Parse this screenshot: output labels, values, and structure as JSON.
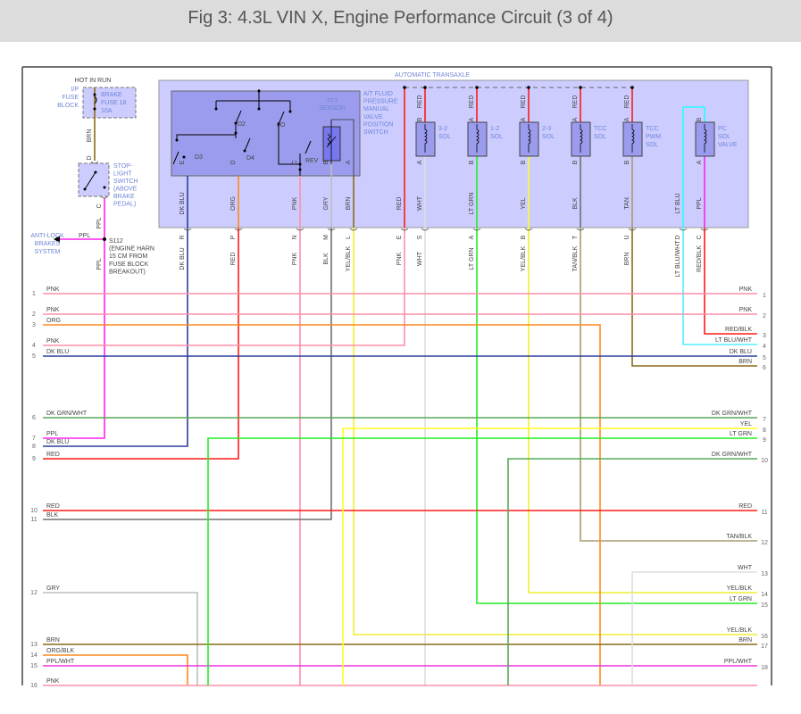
{
  "title": "Fig 3: 4.3L VIN X, Engine Performance Circuit (3 of 4)",
  "wire_colors": {
    "DK BLU": "#2b3ea0",
    "ORG": "#ff8a1e",
    "RED": "#ff1a1a",
    "PNK": "#ff8fa8",
    "GRY": "#bdbdbd",
    "BLK": "#707070",
    "BRN": "#8a6a1a",
    "YEL/BLK": "#eeee30",
    "WHT": "#dddddd",
    "LT GRN": "#22ee22",
    "YEL": "#ffff22",
    "TAN/BLK": "#a89a70",
    "TAN": "#a89a70",
    "LT BLU": "#22ffff",
    "LT BLU/WHT": "#55eeff",
    "PPL": "#ff22ee",
    "RED/BLK": "#ff1a1a",
    "DK GRN/WHT": "#55aa55",
    "ORG/BLK": "#ff8a1e",
    "PPL/WHT": "#ee33dd"
  },
  "fuse": {
    "hot_in_run": "HOT IN RUN",
    "block_lines": [
      "I/P",
      "FUSE",
      "BLOCK"
    ],
    "fuse_lines": [
      "BRAKE",
      "FUSE 18",
      "10A"
    ],
    "wire_label": "BRN",
    "pin": "D"
  },
  "stoplight_switch": {
    "lines": [
      "STOP-",
      "LIGHT",
      "SWITCH",
      "(ABOVE",
      "BRAKE",
      "PEDAL)"
    ],
    "pin": "C",
    "wire_label": "PPL"
  },
  "splice": {
    "lines": [
      "S112",
      "(ENGINE HARN",
      "15 CM FROM",
      "FUSE BLOCK",
      "BREAKOUT)"
    ],
    "branch_label": "PPL",
    "lower_label": "PPL"
  },
  "antilock": {
    "lines": [
      "ANTI-LOCK",
      "BRAKES",
      "SYSTEM"
    ]
  },
  "transaxle": {
    "label": "AUTOMATIC TRANSAXLE",
    "switch_lines": [
      "A/T FLUID",
      "PRESSURE",
      "MANUAL",
      "VALVE",
      "POSITION",
      "SWITCH"
    ],
    "switch_positions": [
      "D2",
      "D3",
      "D4",
      "LO",
      "REV"
    ],
    "sensor_lines": [
      "TFT",
      "SENSOR"
    ],
    "solenoids": [
      {
        "lines": [
          "3-2",
          "SOL"
        ],
        "top_pin": "B",
        "top_wire": "RED"
      },
      {
        "lines": [
          "1-2",
          "SOL"
        ],
        "top_pin": "A",
        "top_wire": "RED"
      },
      {
        "lines": [
          "2-3",
          "SOL"
        ],
        "top_pin": "A",
        "top_wire": "RED"
      },
      {
        "lines": [
          "TCC",
          "SOL"
        ],
        "top_pin": "A",
        "top_wire": "RED"
      },
      {
        "lines": [
          "TCC",
          "PWM",
          "SOL"
        ],
        "top_pin": "A",
        "top_wire": "RED"
      },
      {
        "lines": [
          "PC",
          "SOL",
          "VALVE"
        ],
        "top_pin": "B",
        "top_wire": ""
      }
    ]
  },
  "connector_wires": [
    {
      "upper_pin": "E",
      "upper_label": "DK BLU",
      "lower_pin": "R",
      "lower_label": "DK BLU"
    },
    {
      "upper_pin": "D",
      "upper_label": "ORG",
      "lower_pin": "P",
      "lower_label": "RED"
    },
    {
      "upper_pin": "C",
      "upper_label": "PNK",
      "lower_pin": "N",
      "lower_label": "PNK"
    },
    {
      "upper_pin": "B",
      "upper_label": "GRY",
      "lower_pin": "M",
      "lower_label": "BLK"
    },
    {
      "upper_pin": "A",
      "upper_label": "BRN",
      "lower_pin": "L",
      "lower_label": "YEL/BLK"
    },
    {
      "upper_pin": "",
      "upper_label": "RED",
      "lower_pin": "E",
      "lower_label": "PNK"
    },
    {
      "upper_pin": "A",
      "upper_label": "WHT",
      "lower_pin": "S",
      "lower_label": "WHT"
    },
    {
      "upper_pin": "B",
      "upper_label": "LT GRN",
      "lower_pin": "A",
      "lower_label": "LT GRN"
    },
    {
      "upper_pin": "B",
      "upper_label": "YEL",
      "lower_pin": "B",
      "lower_label": "YEL/BLK"
    },
    {
      "upper_pin": "B",
      "upper_label": "BLK",
      "lower_pin": "T",
      "lower_label": "TAN/BLK"
    },
    {
      "upper_pin": "B",
      "upper_label": "TAN",
      "lower_pin": "U",
      "lower_label": "BRN"
    },
    {
      "upper_pin": "",
      "upper_label": "LT BLU",
      "lower_pin": "D",
      "lower_label": "LT BLU/WHT"
    },
    {
      "upper_pin": "A",
      "upper_label": "PPL",
      "lower_pin": "C",
      "lower_label": "RED/BLK"
    }
  ],
  "left_wires": [
    {
      "num": "1",
      "label": "PNK"
    },
    {
      "num": "2",
      "label": "PNK"
    },
    {
      "num": "3",
      "label": "ORG"
    },
    {
      "num": "4",
      "label": "PNK"
    },
    {
      "num": "5",
      "label": "DK BLU"
    },
    {
      "num": "6",
      "label": "DK GRN/WHT"
    },
    {
      "num": "7",
      "label": "PPL"
    },
    {
      "num": "8",
      "label": "DK BLU"
    },
    {
      "num": "9",
      "label": "RED"
    },
    {
      "num": "10",
      "label": "RED"
    },
    {
      "num": "11",
      "label": "BLK"
    },
    {
      "num": "12",
      "label": "GRY"
    },
    {
      "num": "13",
      "label": "BRN"
    },
    {
      "num": "14",
      "label": "ORG/BLK"
    },
    {
      "num": "15",
      "label": "PPL/WHT"
    },
    {
      "num": "16",
      "label": "PNK"
    }
  ],
  "right_wires": [
    {
      "num": "1",
      "label": "PNK"
    },
    {
      "num": "2",
      "label": "PNK"
    },
    {
      "num": "3",
      "label": "RED/BLK"
    },
    {
      "num": "4",
      "label": "LT BLU/WHT"
    },
    {
      "num": "5",
      "label": "DK BLU"
    },
    {
      "num": "6",
      "label": "BRN"
    },
    {
      "num": "7",
      "label": "DK GRN/WHT"
    },
    {
      "num": "8",
      "label": "YEL"
    },
    {
      "num": "9",
      "label": "LT GRN"
    },
    {
      "num": "10",
      "label": "DK GRN/WHT"
    },
    {
      "num": "11",
      "label": "RED"
    },
    {
      "num": "12",
      "label": "TAN/BLK"
    },
    {
      "num": "13",
      "label": "WHT"
    },
    {
      "num": "14",
      "label": "YEL/BLK"
    },
    {
      "num": "15",
      "label": "LT GRN"
    },
    {
      "num": "16",
      "label": "YEL/BLK"
    },
    {
      "num": "17",
      "label": "BRN"
    },
    {
      "num": "18",
      "label": "PPL/WHT"
    }
  ]
}
